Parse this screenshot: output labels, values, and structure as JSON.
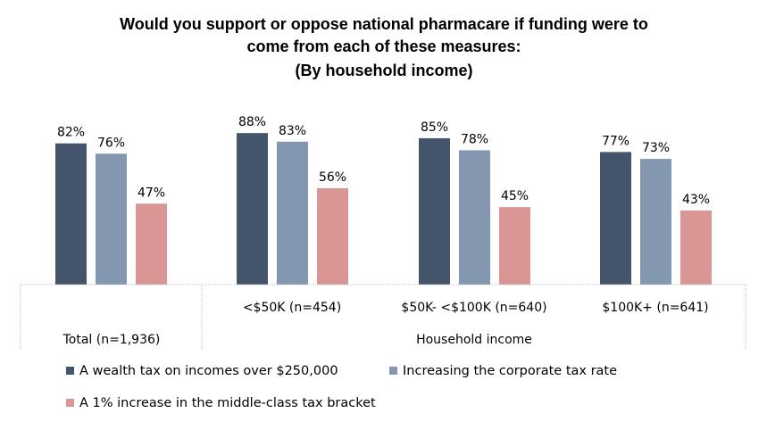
{
  "chart_data": {
    "type": "bar",
    "title": [
      "Would you support or oppose national pharmacare if funding were to",
      "come from each of these measures:",
      "(By household income)"
    ],
    "categories": [
      "Total (n=1,936)",
      "<$50K (n=454)",
      "$50K- <$100K (n=640)",
      "$100K+ (n=641)"
    ],
    "category_groups": [
      {
        "label": "",
        "caption": "Total (n=1,936)"
      },
      {
        "label": "Household income"
      }
    ],
    "series": [
      {
        "name": "A wealth tax on incomes over $250,000",
        "color": "#44546A",
        "values": [
          82,
          88,
          85,
          77
        ],
        "labels": [
          "82%",
          "88%",
          "85%",
          "77%"
        ]
      },
      {
        "name": "Increasing the corporate tax rate",
        "color": "#8497B0",
        "values": [
          76,
          83,
          78,
          73
        ],
        "labels": [
          "76%",
          "83%",
          "78%",
          "73%"
        ]
      },
      {
        "name": "A 1% increase in the middle-class tax bracket",
        "color": "#DA9694",
        "values": [
          47,
          56,
          45,
          43
        ],
        "labels": [
          "47%",
          "56%",
          "45%",
          "43%"
        ]
      }
    ],
    "ylim": [
      0,
      100
    ],
    "grid": false,
    "legend_position": "bottom"
  }
}
